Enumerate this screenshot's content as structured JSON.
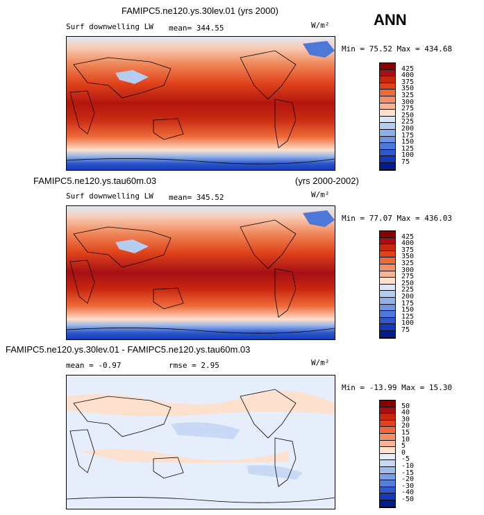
{
  "header": {
    "season": "ANN",
    "units": "W/m²"
  },
  "panels": [
    {
      "title_center": "FAMIPC5.ne120.ys.30lev.01 (yrs 2000)",
      "title_left": "",
      "title_right": "",
      "variable": "Surf downwelling LW",
      "stat1": "mean= 344.55",
      "stat2": "",
      "units": "W/m²",
      "minmax": "Min =  75.52  Max = 434.68",
      "levels": [
        "425",
        "400",
        "375",
        "350",
        "325",
        "300",
        "275",
        "250",
        "225",
        "200",
        "175",
        "150",
        "125",
        "100",
        "75"
      ],
      "colors": [
        "#8b0000",
        "#a50f15",
        "#c8260e",
        "#e0431b",
        "#ef6a3a",
        "#f58f65",
        "#f9b392",
        "#fde0cd",
        "#d9e6f7",
        "#b5cdf1",
        "#8fb1ea",
        "#6e95e2",
        "#4d78d9",
        "#2e58cc",
        "#123ab8",
        "#001c8f"
      ]
    },
    {
      "title_center": "",
      "title_left": "FAMIPC5.ne120.ys.tau60m.03",
      "title_right": "(yrs 2000-2002)",
      "variable": "Surf downwelling LW",
      "stat1": "mean= 345.52",
      "stat2": "",
      "units": "W/m²",
      "minmax": "Min =  77.07  Max = 436.03",
      "levels": [
        "425",
        "400",
        "375",
        "350",
        "325",
        "300",
        "275",
        "250",
        "225",
        "200",
        "175",
        "150",
        "125",
        "100",
        "75"
      ],
      "colors": [
        "#8b0000",
        "#a50f15",
        "#c8260e",
        "#e0431b",
        "#ef6a3a",
        "#f58f65",
        "#f9b392",
        "#fde0cd",
        "#d9e6f7",
        "#b5cdf1",
        "#8fb1ea",
        "#6e95e2",
        "#4d78d9",
        "#2e58cc",
        "#123ab8",
        "#001c8f"
      ]
    },
    {
      "title_center": "",
      "title_left": "FAMIPC5.ne120.ys.30lev.01 - FAMIPC5.ne120.ys.tau60m.03",
      "title_right": "",
      "variable": "",
      "stat1": "mean =   -0.97",
      "stat2": "rmse =    2.95",
      "units": "W/m²",
      "minmax": "Min = -13.99  Max =  15.30",
      "levels": [
        "50",
        "40",
        "30",
        "20",
        "15",
        "10",
        "5",
        "0",
        "-5",
        "-10",
        "-15",
        "-20",
        "-30",
        "-40",
        "-50"
      ],
      "colors": [
        "#8b0000",
        "#a50f15",
        "#c8260e",
        "#e0431b",
        "#ef6a3a",
        "#f58f65",
        "#f9b392",
        "#fde0cd",
        "#e6eefb",
        "#c7d9f4",
        "#9dbcec",
        "#7aa0e4",
        "#5480d9",
        "#2e58cc",
        "#123ab8",
        "#001c8f"
      ]
    }
  ]
}
